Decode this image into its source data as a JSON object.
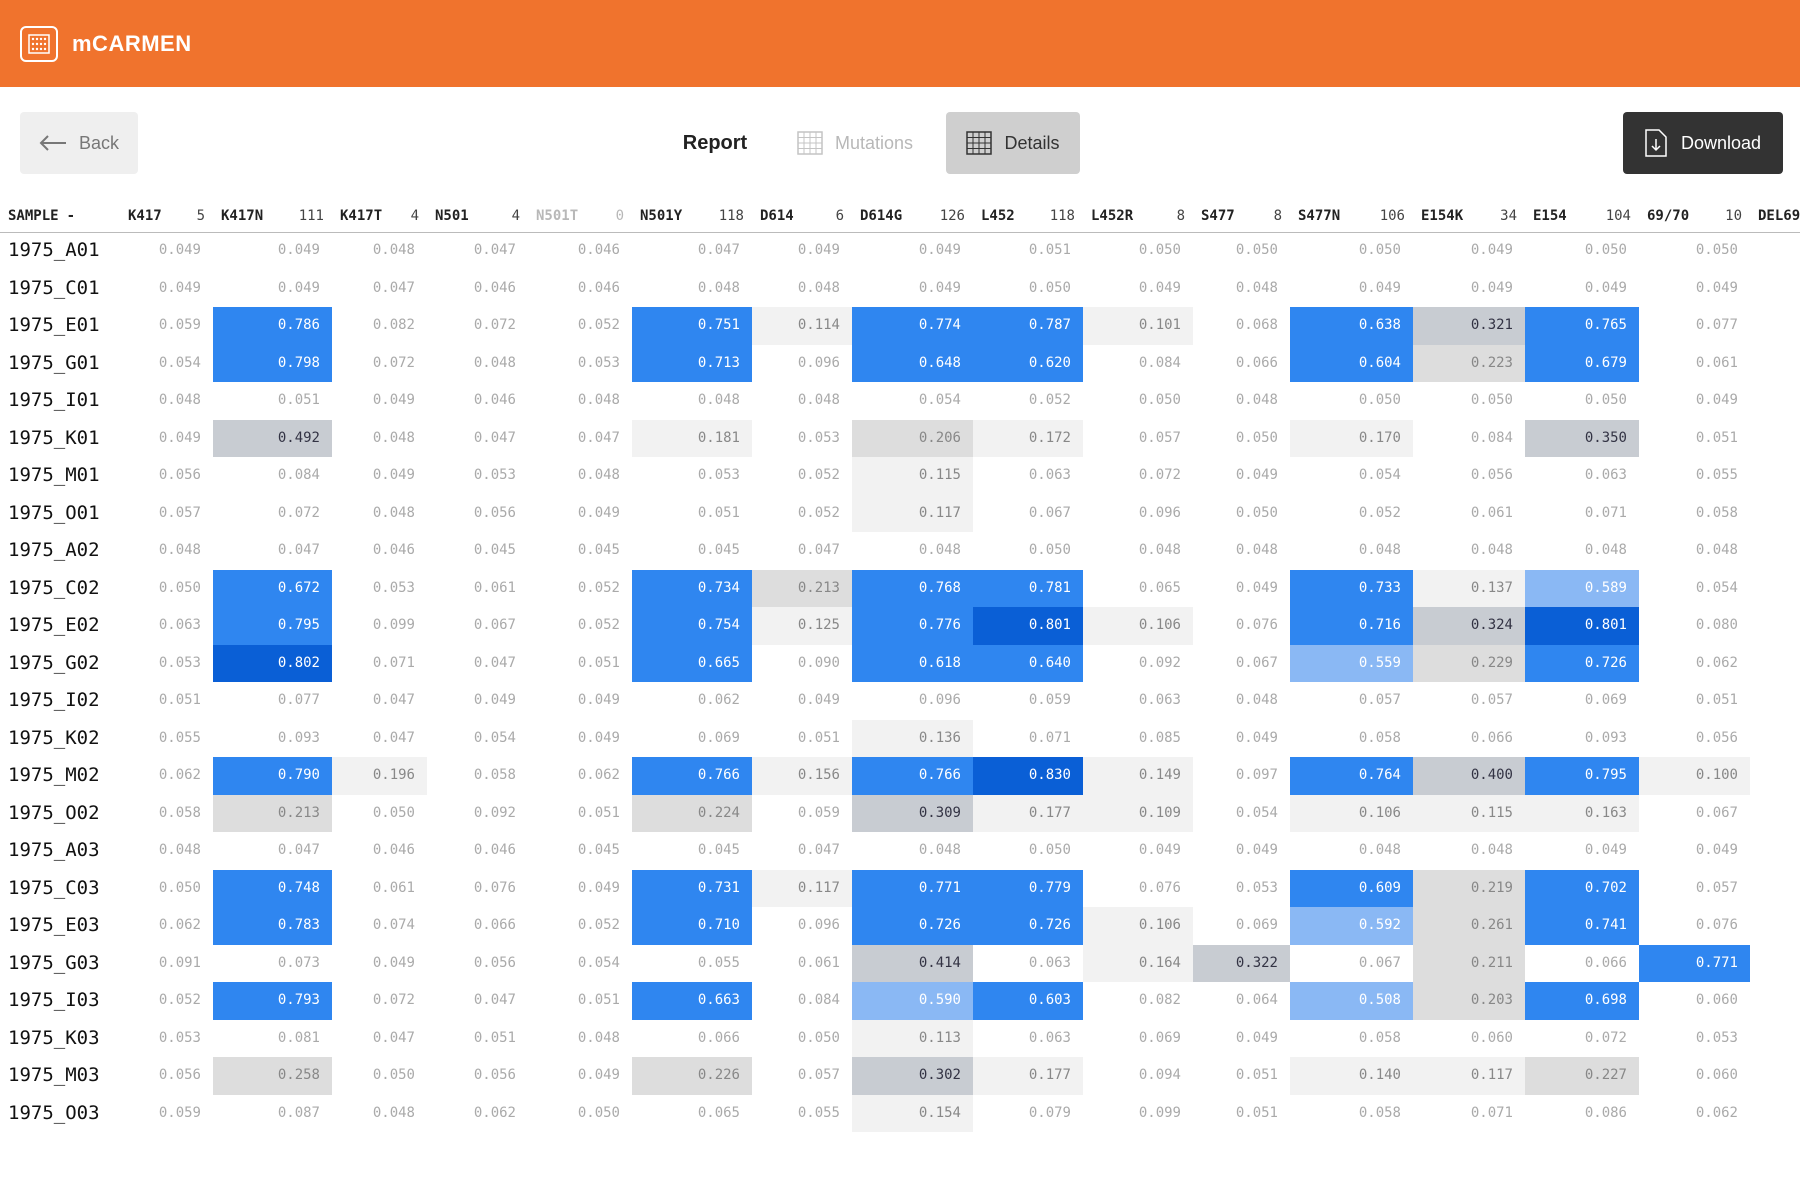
{
  "app": {
    "name": "mCARMEN"
  },
  "toolbar": {
    "back_label": "Back",
    "report_label": "Report",
    "mutations_label": "Mutations",
    "details_label": "Details",
    "download_label": "Download"
  },
  "table": {
    "sample_header": "SAMPLE",
    "sort_indicator": "-",
    "columns": [
      {
        "name": "K417",
        "count": "5"
      },
      {
        "name": "K417N",
        "count": "111"
      },
      {
        "name": "K417T",
        "count": "4"
      },
      {
        "name": "N501",
        "count": "4"
      },
      {
        "name": "N501T",
        "count": "0"
      },
      {
        "name": "N501Y",
        "count": "118"
      },
      {
        "name": "D614",
        "count": "6"
      },
      {
        "name": "D614G",
        "count": "126"
      },
      {
        "name": "L452",
        "count": "118"
      },
      {
        "name": "L452R",
        "count": "8"
      },
      {
        "name": "S477",
        "count": "8"
      },
      {
        "name": "S477N",
        "count": "106"
      },
      {
        "name": "E154K",
        "count": "34"
      },
      {
        "name": "E154",
        "count": "104"
      },
      {
        "name": "69/70",
        "count": "10"
      },
      {
        "name": "DEL69",
        "count": ""
      }
    ],
    "rows": [
      {
        "sample": "1975_A01",
        "values": [
          "0.049",
          "0.049",
          "0.048",
          "0.047",
          "0.046",
          "0.047",
          "0.049",
          "0.049",
          "0.051",
          "0.050",
          "0.050",
          "0.050",
          "0.049",
          "0.050",
          "0.050",
          ""
        ]
      },
      {
        "sample": "1975_C01",
        "values": [
          "0.049",
          "0.049",
          "0.047",
          "0.046",
          "0.046",
          "0.048",
          "0.048",
          "0.049",
          "0.050",
          "0.049",
          "0.048",
          "0.049",
          "0.049",
          "0.049",
          "0.049",
          ""
        ]
      },
      {
        "sample": "1975_E01",
        "values": [
          "0.059",
          "0.786",
          "0.082",
          "0.072",
          "0.052",
          "0.751",
          "0.114",
          "0.774",
          "0.787",
          "0.101",
          "0.068",
          "0.638",
          "0.321",
          "0.765",
          "0.077",
          ""
        ]
      },
      {
        "sample": "1975_G01",
        "values": [
          "0.054",
          "0.798",
          "0.072",
          "0.048",
          "0.053",
          "0.713",
          "0.096",
          "0.648",
          "0.620",
          "0.084",
          "0.066",
          "0.604",
          "0.223",
          "0.679",
          "0.061",
          ""
        ]
      },
      {
        "sample": "1975_I01",
        "values": [
          "0.048",
          "0.051",
          "0.049",
          "0.046",
          "0.048",
          "0.048",
          "0.048",
          "0.054",
          "0.052",
          "0.050",
          "0.048",
          "0.050",
          "0.050",
          "0.050",
          "0.049",
          ""
        ]
      },
      {
        "sample": "1975_K01",
        "values": [
          "0.049",
          "0.492",
          "0.048",
          "0.047",
          "0.047",
          "0.181",
          "0.053",
          "0.206",
          "0.172",
          "0.057",
          "0.050",
          "0.170",
          "0.084",
          "0.350",
          "0.051",
          ""
        ]
      },
      {
        "sample": "1975_M01",
        "values": [
          "0.056",
          "0.084",
          "0.049",
          "0.053",
          "0.048",
          "0.053",
          "0.052",
          "0.115",
          "0.063",
          "0.072",
          "0.049",
          "0.054",
          "0.056",
          "0.063",
          "0.055",
          ""
        ]
      },
      {
        "sample": "1975_O01",
        "values": [
          "0.057",
          "0.072",
          "0.048",
          "0.056",
          "0.049",
          "0.051",
          "0.052",
          "0.117",
          "0.067",
          "0.096",
          "0.050",
          "0.052",
          "0.061",
          "0.071",
          "0.058",
          ""
        ]
      },
      {
        "sample": "1975_A02",
        "values": [
          "0.048",
          "0.047",
          "0.046",
          "0.045",
          "0.045",
          "0.045",
          "0.047",
          "0.048",
          "0.050",
          "0.048",
          "0.048",
          "0.048",
          "0.048",
          "0.048",
          "0.048",
          ""
        ]
      },
      {
        "sample": "1975_C02",
        "values": [
          "0.050",
          "0.672",
          "0.053",
          "0.061",
          "0.052",
          "0.734",
          "0.213",
          "0.768",
          "0.781",
          "0.065",
          "0.049",
          "0.733",
          "0.137",
          "0.589",
          "0.054",
          ""
        ]
      },
      {
        "sample": "1975_E02",
        "values": [
          "0.063",
          "0.795",
          "0.099",
          "0.067",
          "0.052",
          "0.754",
          "0.125",
          "0.776",
          "0.801",
          "0.106",
          "0.076",
          "0.716",
          "0.324",
          "0.801",
          "0.080",
          ""
        ]
      },
      {
        "sample": "1975_G02",
        "values": [
          "0.053",
          "0.802",
          "0.071",
          "0.047",
          "0.051",
          "0.665",
          "0.090",
          "0.618",
          "0.640",
          "0.092",
          "0.067",
          "0.559",
          "0.229",
          "0.726",
          "0.062",
          ""
        ]
      },
      {
        "sample": "1975_I02",
        "values": [
          "0.051",
          "0.077",
          "0.047",
          "0.049",
          "0.049",
          "0.062",
          "0.049",
          "0.096",
          "0.059",
          "0.063",
          "0.048",
          "0.057",
          "0.057",
          "0.069",
          "0.051",
          ""
        ]
      },
      {
        "sample": "1975_K02",
        "values": [
          "0.055",
          "0.093",
          "0.047",
          "0.054",
          "0.049",
          "0.069",
          "0.051",
          "0.136",
          "0.071",
          "0.085",
          "0.049",
          "0.058",
          "0.066",
          "0.093",
          "0.056",
          ""
        ]
      },
      {
        "sample": "1975_M02",
        "values": [
          "0.062",
          "0.790",
          "0.196",
          "0.058",
          "0.062",
          "0.766",
          "0.156",
          "0.766",
          "0.830",
          "0.149",
          "0.097",
          "0.764",
          "0.400",
          "0.795",
          "0.100",
          ""
        ]
      },
      {
        "sample": "1975_O02",
        "values": [
          "0.058",
          "0.213",
          "0.050",
          "0.092",
          "0.051",
          "0.224",
          "0.059",
          "0.309",
          "0.177",
          "0.109",
          "0.054",
          "0.106",
          "0.115",
          "0.163",
          "0.067",
          ""
        ]
      },
      {
        "sample": "1975_A03",
        "values": [
          "0.048",
          "0.047",
          "0.046",
          "0.046",
          "0.045",
          "0.045",
          "0.047",
          "0.048",
          "0.050",
          "0.049",
          "0.049",
          "0.048",
          "0.048",
          "0.049",
          "0.049",
          ""
        ]
      },
      {
        "sample": "1975_C03",
        "values": [
          "0.050",
          "0.748",
          "0.061",
          "0.076",
          "0.049",
          "0.731",
          "0.117",
          "0.771",
          "0.779",
          "0.076",
          "0.053",
          "0.609",
          "0.219",
          "0.702",
          "0.057",
          ""
        ]
      },
      {
        "sample": "1975_E03",
        "values": [
          "0.062",
          "0.783",
          "0.074",
          "0.066",
          "0.052",
          "0.710",
          "0.096",
          "0.726",
          "0.726",
          "0.106",
          "0.069",
          "0.592",
          "0.261",
          "0.741",
          "0.076",
          ""
        ]
      },
      {
        "sample": "1975_G03",
        "values": [
          "0.091",
          "0.073",
          "0.049",
          "0.056",
          "0.054",
          "0.055",
          "0.061",
          "0.414",
          "0.063",
          "0.164",
          "0.322",
          "0.067",
          "0.211",
          "0.066",
          "0.771",
          ""
        ]
      },
      {
        "sample": "1975_I03",
        "values": [
          "0.052",
          "0.793",
          "0.072",
          "0.047",
          "0.051",
          "0.663",
          "0.084",
          "0.590",
          "0.603",
          "0.082",
          "0.064",
          "0.508",
          "0.203",
          "0.698",
          "0.060",
          ""
        ]
      },
      {
        "sample": "1975_K03",
        "values": [
          "0.053",
          "0.081",
          "0.047",
          "0.051",
          "0.048",
          "0.066",
          "0.050",
          "0.113",
          "0.063",
          "0.069",
          "0.049",
          "0.058",
          "0.060",
          "0.072",
          "0.053",
          ""
        ]
      },
      {
        "sample": "1975_M03",
        "values": [
          "0.056",
          "0.258",
          "0.050",
          "0.056",
          "0.049",
          "0.226",
          "0.057",
          "0.302",
          "0.177",
          "0.094",
          "0.051",
          "0.140",
          "0.117",
          "0.227",
          "0.060",
          ""
        ]
      },
      {
        "sample": "1975_O03",
        "values": [
          "0.059",
          "0.087",
          "0.048",
          "0.062",
          "0.050",
          "0.065",
          "0.055",
          "0.154",
          "0.079",
          "0.099",
          "0.051",
          "0.058",
          "0.071",
          "0.086",
          "0.062",
          ""
        ]
      }
    ]
  },
  "colors": {
    "brand": "#f0732d",
    "positive_dark": "#0a5fd6",
    "positive": "#2f86f0",
    "positive_light": "#8ab8f4",
    "grey_dark": "#c8ccd2",
    "grey_mid": "#dddddd",
    "grey_light": "#f2f2f2"
  }
}
